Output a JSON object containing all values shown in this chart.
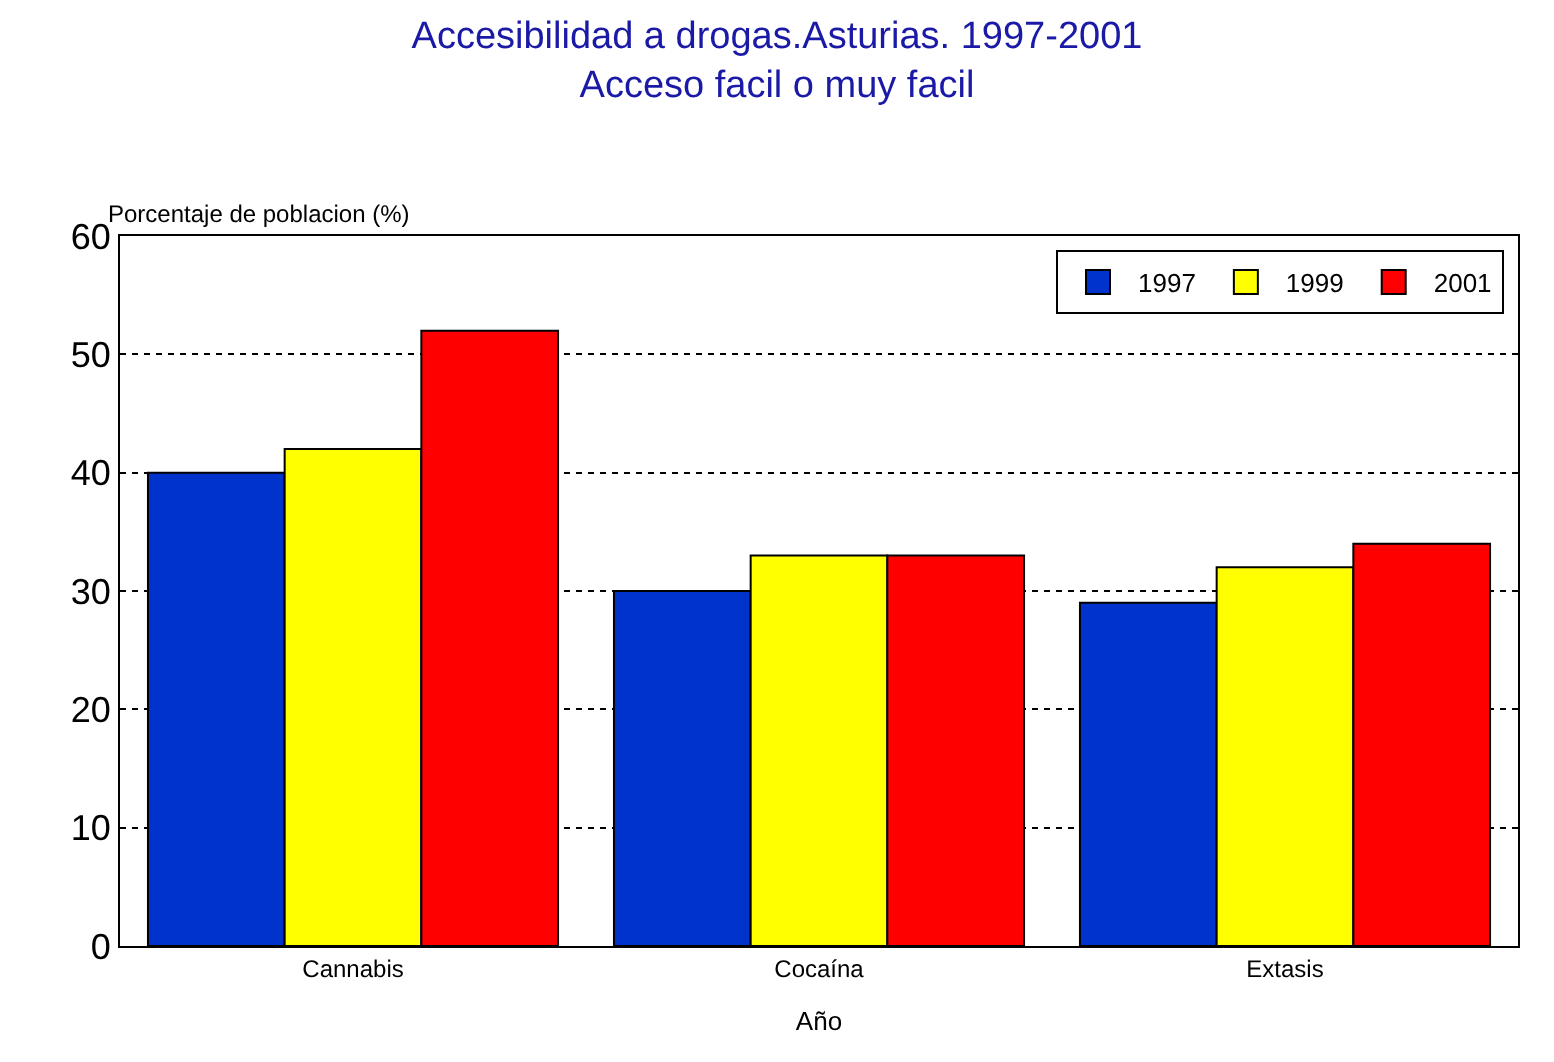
{
  "chart_data": {
    "type": "bar",
    "title": "Accesibilidad a drogas.Asturias. 1997-2001\nAcceso facil o muy facil",
    "ylabel": "Porcentaje de poblacion (%)",
    "xlabel": "Año",
    "categories": [
      "Cannabis",
      "Cocaína",
      "Extasis"
    ],
    "series": [
      {
        "name": "1997",
        "color": "#0033cc",
        "values": [
          40,
          30,
          29
        ]
      },
      {
        "name": "1999",
        "color": "#ffff00",
        "values": [
          42,
          33,
          32
        ]
      },
      {
        "name": "2001",
        "color": "#ff0000",
        "values": [
          52,
          33,
          34
        ]
      }
    ],
    "ylim": [
      0,
      60
    ],
    "yticks": [
      0,
      10,
      20,
      30,
      40,
      50,
      60
    ],
    "grid": "y",
    "legend": "top right"
  }
}
